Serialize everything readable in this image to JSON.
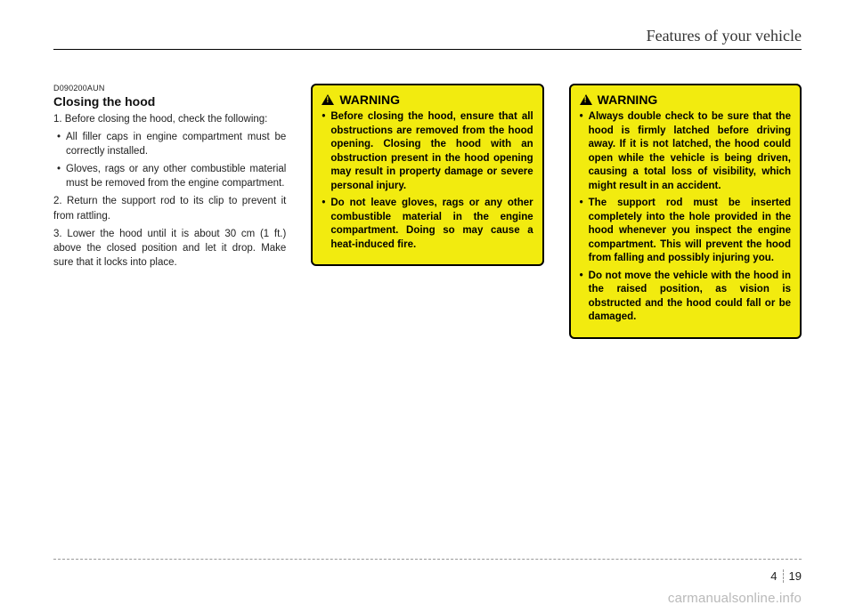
{
  "header": {
    "section_title": "Features of your vehicle"
  },
  "column1": {
    "doc_code": "D090200AUN",
    "heading": "Closing the hood",
    "step1_intro": "1. Before closing the hood, check the following:",
    "step1_bullets": [
      "All filler caps in engine compartment must be correctly installed.",
      "Gloves, rags or any other combustible material must be removed from the engine compartment."
    ],
    "step2": "2. Return the support rod to its clip to prevent it from rattling.",
    "step3": "3. Lower the hood until it is about 30 cm (1 ft.) above the closed position and let it drop. Make sure that it locks into place."
  },
  "warning1": {
    "title": "WARNING",
    "items": [
      "Before closing the hood, ensure that all obstructions are removed from the hood opening. Closing the hood with an obstruction present in the hood opening may result in property damage or severe personal injury.",
      "Do not leave gloves, rags or any other combustible material in the engine compartment. Doing so may cause a heat-induced fire."
    ]
  },
  "warning2": {
    "title": "WARNING",
    "items": [
      "Always double check to be sure that the hood is firmly latched before driving away. If it is not latched, the hood could open while the vehicle is being driven, causing a total loss of visibility, which might result in an accident.",
      "The support rod must be inserted completely into the hole provided in the hood whenever you inspect the engine compartment. This will prevent the hood from falling and possibly injuring you.",
      "Do not move the vehicle with the hood in the raised position, as vision is obstructed and the hood could fall or be damaged."
    ]
  },
  "footer": {
    "chapter": "4",
    "page": "19",
    "watermark": "carmanualsonline.info"
  }
}
